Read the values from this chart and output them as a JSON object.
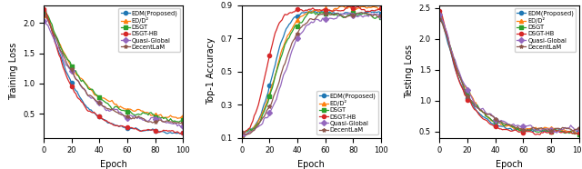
{
  "labels": [
    "EDM(Proposed)",
    "ED/D²",
    "DSGT",
    "DSGT-HB",
    "Quasi-Global",
    "DecentLaM"
  ],
  "colors": [
    "#1f77b4",
    "#ff7f0e",
    "#2ca02c",
    "#d62728",
    "#9467bd",
    "#8c564b"
  ],
  "markers": [
    "o",
    "^",
    "s",
    "o",
    "D",
    "*"
  ],
  "plot1": {
    "xlabel": "Epoch",
    "ylabel": "Training Loss",
    "xlim": [
      0,
      100
    ],
    "yticks": [
      0.5,
      1.0,
      1.5,
      2.0
    ]
  },
  "plot2": {
    "xlabel": "Epoch",
    "ylabel": "Top-1 Accuracy",
    "xlim": [
      0,
      100
    ],
    "yticks": [
      0.1,
      0.3,
      0.5,
      0.7,
      0.9
    ]
  },
  "plot3": {
    "xlabel": "Epoch",
    "ylabel": "Testing Loss",
    "xlim": [
      0,
      100
    ],
    "yticks": [
      0.5,
      1.0,
      1.5,
      2.0,
      2.5
    ]
  }
}
